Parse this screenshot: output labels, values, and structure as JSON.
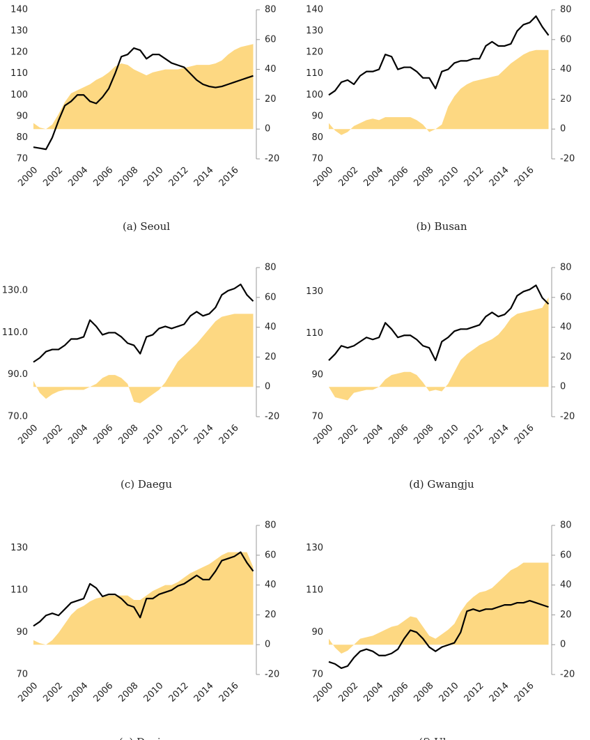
{
  "chart_data": [
    {
      "type": "line",
      "caption": "(a) Seoul",
      "x": [
        2000,
        2000.5,
        2001,
        2001.5,
        2002,
        2002.5,
        2003,
        2003.5,
        2004,
        2004.5,
        2005,
        2005.5,
        2006,
        2006.5,
        2007,
        2007.5,
        2008,
        2008.5,
        2009,
        2009.5,
        2010,
        2010.5,
        2011,
        2011.5,
        2012,
        2012.5,
        2013,
        2013.5,
        2014,
        2014.5,
        2015,
        2015.5,
        2016,
        2016.5,
        2017,
        2017.5
      ],
      "xlim": [
        2000,
        2017.75
      ],
      "xticks": [
        2000,
        2002,
        2004,
        2006,
        2008,
        2010,
        2012,
        2014,
        2016
      ],
      "ylim": [
        70,
        140
      ],
      "yticks": [
        70,
        80,
        90,
        100,
        110,
        120,
        130,
        140
      ],
      "y2lim": [
        -20,
        80
      ],
      "y2ticks": [
        -20,
        0,
        20,
        40,
        60,
        80
      ],
      "series": [
        {
          "color": "#000000",
          "values": [
            75.5,
            75,
            74.5,
            80,
            88,
            95,
            97,
            100,
            100,
            97,
            96,
            99,
            103,
            110,
            118,
            119,
            122,
            121,
            117,
            119,
            119,
            117,
            115,
            114,
            113,
            110,
            107,
            105,
            104,
            103.5,
            104,
            105,
            106,
            107,
            108,
            109
          ]
        },
        {
          "type": "area",
          "axis": "y2",
          "color": "#fdd882",
          "values": [
            4,
            1,
            0,
            3,
            10,
            18,
            24,
            26,
            28,
            30,
            33,
            35,
            38,
            42,
            44,
            43,
            40,
            38,
            36,
            38,
            39,
            40,
            40,
            40,
            41,
            42,
            43,
            43,
            43,
            44,
            46,
            50,
            53,
            55,
            56,
            57
          ]
        }
      ]
    },
    {
      "type": "line",
      "caption": "(b) Busan",
      "x": [
        2000,
        2000.5,
        2001,
        2001.5,
        2002,
        2002.5,
        2003,
        2003.5,
        2004,
        2004.5,
        2005,
        2005.5,
        2006,
        2006.5,
        2007,
        2007.5,
        2008,
        2008.5,
        2009,
        2009.5,
        2010,
        2010.5,
        2011,
        2011.5,
        2012,
        2012.5,
        2013,
        2013.5,
        2014,
        2014.5,
        2015,
        2015.5,
        2016,
        2016.5,
        2017,
        2017.5
      ],
      "xlim": [
        2000,
        2017.75
      ],
      "xticks": [
        2000,
        2002,
        2004,
        2006,
        2008,
        2010,
        2012,
        2014,
        2016
      ],
      "ylim": [
        70,
        140
      ],
      "yticks": [
        70,
        80,
        90,
        100,
        110,
        120,
        130,
        140
      ],
      "y2lim": [
        -20,
        80
      ],
      "y2ticks": [
        -20,
        0,
        20,
        40,
        60,
        80
      ],
      "series": [
        {
          "color": "#000000",
          "values": [
            100,
            102,
            106,
            107,
            105,
            109,
            111,
            111,
            112,
            119,
            118,
            112,
            113,
            113,
            111,
            108,
            108,
            103,
            111,
            112,
            115,
            116,
            116,
            117,
            117,
            123,
            125,
            123,
            123,
            124,
            130,
            133,
            134,
            137,
            132,
            128
          ]
        },
        {
          "type": "area",
          "axis": "y2",
          "color": "#fdd882",
          "values": [
            4,
            -1,
            -4,
            -2,
            2,
            4,
            6,
            7,
            6,
            8,
            8,
            8,
            8,
            8,
            6,
            3,
            -2,
            0,
            3,
            15,
            22,
            27,
            30,
            32,
            33,
            34,
            35,
            36,
            40,
            44,
            47,
            50,
            52,
            53,
            53,
            53
          ]
        }
      ]
    },
    {
      "type": "line",
      "caption": "(c) Daegu",
      "x": [
        2000,
        2000.5,
        2001,
        2001.5,
        2002,
        2002.5,
        2003,
        2003.5,
        2004,
        2004.5,
        2005,
        2005.5,
        2006,
        2006.5,
        2007,
        2007.5,
        2008,
        2008.5,
        2009,
        2009.5,
        2010,
        2010.5,
        2011,
        2011.5,
        2012,
        2012.5,
        2013,
        2013.5,
        2014,
        2014.5,
        2015,
        2015.5,
        2016,
        2016.5,
        2017,
        2017.5
      ],
      "xlim": [
        2000,
        2017.75
      ],
      "xticks": [
        2000,
        2002,
        2004,
        2006,
        2008,
        2010,
        2012,
        2014,
        2016
      ],
      "ylim": [
        70,
        141
      ],
      "yticks": [
        {
          "value": 70,
          "label": "70.0"
        },
        {
          "value": 90,
          "label": "90.0"
        },
        {
          "value": 110,
          "label": "110.0"
        },
        {
          "value": 130,
          "label": "130.0"
        }
      ],
      "y2lim": [
        -20,
        80
      ],
      "y2ticks": [
        -20,
        0,
        20,
        40,
        60,
        80
      ],
      "series": [
        {
          "color": "#000000",
          "values": [
            96,
            98,
            101,
            102,
            102,
            104,
            107,
            107,
            108,
            116,
            113,
            109,
            110,
            110,
            108,
            105,
            104,
            100,
            108,
            109,
            112,
            113,
            112,
            113,
            114,
            118,
            120,
            118,
            119,
            122,
            128,
            130,
            131,
            133,
            128,
            125
          ]
        },
        {
          "type": "area",
          "axis": "y2",
          "color": "#fdd882",
          "values": [
            4,
            -4,
            -8,
            -5,
            -3,
            -2,
            -2,
            -2,
            -2,
            0,
            2,
            6,
            8,
            8,
            6,
            2,
            -10,
            -11,
            -8,
            -5,
            -2,
            3,
            10,
            17,
            21,
            25,
            29,
            34,
            39,
            44,
            47,
            48,
            49,
            49,
            49,
            49
          ]
        }
      ]
    },
    {
      "type": "line",
      "caption": "(d) Gwangju",
      "x": [
        2000,
        2000.5,
        2001,
        2001.5,
        2002,
        2002.5,
        2003,
        2003.5,
        2004,
        2004.5,
        2005,
        2005.5,
        2006,
        2006.5,
        2007,
        2007.5,
        2008,
        2008.5,
        2009,
        2009.5,
        2010,
        2010.5,
        2011,
        2011.5,
        2012,
        2012.5,
        2013,
        2013.5,
        2014,
        2014.5,
        2015,
        2015.5,
        2016,
        2016.5,
        2017,
        2017.5
      ],
      "xlim": [
        2000,
        2017.75
      ],
      "xticks": [
        2000,
        2002,
        2004,
        2006,
        2008,
        2010,
        2012,
        2014,
        2016
      ],
      "ylim": [
        70,
        141.5
      ],
      "yticks": [
        70,
        90,
        110,
        130
      ],
      "y2lim": [
        -20,
        80
      ],
      "y2ticks": [
        -20,
        0,
        20,
        40,
        60,
        80
      ],
      "series": [
        {
          "color": "#000000",
          "values": [
            97,
            100,
            104,
            103,
            104,
            106,
            108,
            107,
            108,
            115,
            112,
            108,
            109,
            109,
            107,
            104,
            103,
            97,
            106,
            108,
            111,
            112,
            112,
            113,
            114,
            118,
            120,
            118,
            119,
            122,
            128,
            130,
            131,
            133,
            127,
            124
          ]
        },
        {
          "type": "area",
          "axis": "y2",
          "color": "#fdd882",
          "values": [
            0,
            -7,
            -8,
            -9,
            -4,
            -3,
            -2,
            -2,
            0,
            5,
            8,
            9,
            10,
            10,
            8,
            3,
            -3,
            -2,
            -3,
            2,
            10,
            18,
            22,
            25,
            28,
            30,
            32,
            35,
            40,
            46,
            49,
            50,
            51,
            52,
            53,
            60
          ]
        }
      ]
    },
    {
      "type": "line",
      "caption": "(e) Daejon",
      "x": [
        2000,
        2000.5,
        2001,
        2001.5,
        2002,
        2002.5,
        2003,
        2003.5,
        2004,
        2004.5,
        2005,
        2005.5,
        2006,
        2006.5,
        2007,
        2007.5,
        2008,
        2008.5,
        2009,
        2009.5,
        2010,
        2010.5,
        2011,
        2011.5,
        2012,
        2012.5,
        2013,
        2013.5,
        2014,
        2014.5,
        2015,
        2015.5,
        2016,
        2016.5,
        2017,
        2017.5
      ],
      "xlim": [
        2000,
        2017.75
      ],
      "xticks": [
        2000,
        2002,
        2004,
        2006,
        2008,
        2010,
        2012,
        2014,
        2016
      ],
      "ylim": [
        70,
        140.7
      ],
      "yticks": [
        70,
        90,
        110,
        130
      ],
      "y2lim": [
        -20,
        80
      ],
      "y2ticks": [
        -20,
        0,
        20,
        40,
        60,
        80
      ],
      "series": [
        {
          "color": "#000000",
          "values": [
            93,
            95,
            98,
            99,
            98,
            101,
            104,
            105,
            106,
            113,
            111,
            107,
            108,
            108,
            106,
            103,
            102,
            97,
            106,
            106,
            108,
            109,
            110,
            112,
            113,
            115,
            117,
            115,
            115,
            119,
            124,
            125,
            126,
            128,
            123,
            119
          ]
        },
        {
          "type": "area",
          "axis": "y2",
          "color": "#fdd882",
          "values": [
            3,
            1,
            0,
            3,
            8,
            14,
            20,
            24,
            26,
            29,
            31,
            32,
            33,
            33,
            33,
            33,
            30,
            30,
            33,
            36,
            38,
            40,
            40,
            42,
            45,
            48,
            50,
            52,
            54,
            57,
            60,
            62,
            62,
            62,
            62,
            52
          ]
        }
      ]
    },
    {
      "type": "line",
      "caption": "(f) Ulsan",
      "x": [
        2000,
        2000.5,
        2001,
        2001.5,
        2002,
        2002.5,
        2003,
        2003.5,
        2004,
        2004.5,
        2005,
        2005.5,
        2006,
        2006.5,
        2007,
        2007.5,
        2008,
        2008.5,
        2009,
        2009.5,
        2010,
        2010.5,
        2011,
        2011.5,
        2012,
        2012.5,
        2013,
        2013.5,
        2014,
        2014.5,
        2015,
        2015.5,
        2016,
        2016.5,
        2017,
        2017.5
      ],
      "xlim": [
        2000,
        2017.75
      ],
      "xticks": [
        2000,
        2002,
        2004,
        2006,
        2008,
        2010,
        2012,
        2014,
        2016
      ],
      "ylim": [
        70,
        140.7
      ],
      "yticks": [
        70,
        90,
        110,
        130
      ],
      "y2lim": [
        -20,
        80
      ],
      "y2ticks": [
        -20,
        0,
        20,
        40,
        60,
        80
      ],
      "series": [
        {
          "color": "#000000",
          "values": [
            76,
            75,
            73,
            74,
            78,
            81,
            82,
            81,
            79,
            79,
            80,
            82,
            87,
            91,
            90,
            87,
            83,
            81,
            83,
            84,
            85,
            90,
            100,
            101,
            100,
            101,
            101,
            102,
            103,
            103,
            104,
            104,
            105,
            104,
            103,
            102
          ]
        },
        {
          "type": "area",
          "axis": "y2",
          "color": "#fdd882",
          "values": [
            4,
            -2,
            -6,
            -4,
            0,
            4,
            5,
            6,
            8,
            10,
            12,
            13,
            16,
            19,
            18,
            12,
            6,
            4,
            7,
            10,
            14,
            22,
            28,
            32,
            35,
            36,
            38,
            42,
            46,
            50,
            52,
            55,
            55,
            55,
            55,
            55
          ]
        }
      ]
    }
  ]
}
